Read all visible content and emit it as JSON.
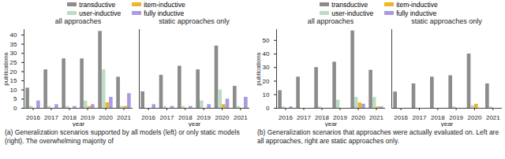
{
  "chart_data": [
    {
      "type": "bar",
      "title": "all approaches",
      "legend": "top",
      "caption": "(a) Generalization scenarios supported by all models (left) or only static models (right). The overwhelming majority of",
      "x_label": "year",
      "y_label": "publications",
      "categories": [
        "2016",
        "2017",
        "2018",
        "2019",
        "2020",
        "2021"
      ],
      "series": [
        {
          "name": "transductive",
          "color": "#8c8c8c",
          "values": [
            11,
            21,
            27,
            27,
            42,
            17
          ]
        },
        {
          "name": "user-inductive",
          "color": "#bcdcc4",
          "values": [
            1,
            1,
            1,
            4,
            21,
            1
          ]
        },
        {
          "name": "item-inductive",
          "color": "#f0b429",
          "values": [
            0,
            0,
            0,
            1,
            3,
            1
          ]
        },
        {
          "name": "fully inductive",
          "color": "#a99be0",
          "values": [
            4,
            2,
            1,
            2,
            6,
            8
          ]
        }
      ],
      "ylim": [
        0,
        43
      ],
      "yticks": [
        0,
        5,
        10,
        15,
        20,
        25,
        30,
        35,
        40
      ]
    },
    {
      "type": "bar",
      "title": "static approaches only",
      "tick_labels": "x",
      "x_label": "year",
      "categories": [
        "2016",
        "2017",
        "2018",
        "2019",
        "2020",
        "2021"
      ],
      "series": [
        {
          "name": "transductive",
          "color": "#8c8c8c",
          "values": [
            9,
            18,
            23,
            21,
            34,
            12
          ]
        },
        {
          "name": "user-inductive",
          "color": "#bcdcc4",
          "values": [
            0,
            1,
            1,
            4,
            10,
            1
          ]
        },
        {
          "name": "item-inductive",
          "color": "#f0b429",
          "values": [
            0,
            0,
            0,
            0,
            2,
            0
          ]
        },
        {
          "name": "fully inductive",
          "color": "#a99be0",
          "values": [
            2,
            1,
            1,
            2,
            5,
            6
          ]
        }
      ],
      "ylim": [
        0,
        43
      ]
    },
    {
      "type": "bar",
      "title": "all approaches",
      "legend": "top",
      "caption": "(b) Generalization scenarios that approaches were actually evaluated on. Left are all approaches, right are static approaches only.",
      "x_label": "year",
      "y_label": "publications",
      "categories": [
        "2016",
        "2017",
        "2018",
        "2019",
        "2020",
        "2021"
      ],
      "series": [
        {
          "name": "transductive",
          "color": "#8c8c8c",
          "values": [
            13,
            23,
            30,
            34,
            57,
            28
          ]
        },
        {
          "name": "user-inductive",
          "color": "#bcdcc4",
          "values": [
            1,
            0,
            1,
            6,
            8,
            8
          ]
        },
        {
          "name": "item-inductive",
          "color": "#f0b429",
          "values": [
            0,
            0,
            0,
            0,
            4,
            1
          ]
        },
        {
          "name": "fully inductive",
          "color": "#a99be0",
          "values": [
            1,
            0,
            0,
            0,
            3,
            1
          ]
        }
      ],
      "ylim": [
        0,
        58
      ],
      "yticks": [
        0,
        10,
        20,
        30,
        40,
        50
      ]
    },
    {
      "type": "bar",
      "title": "static approaches only",
      "tick_labels": "x",
      "x_label": "year",
      "categories": [
        "2016",
        "2017",
        "2018",
        "2019",
        "2020",
        "2021"
      ],
      "series": [
        {
          "name": "transductive",
          "color": "#8c8c8c",
          "values": [
            12,
            18,
            23,
            24,
            40,
            18
          ]
        },
        {
          "name": "user-inductive",
          "color": "#bcdcc4",
          "values": [
            0,
            0,
            0,
            1,
            2,
            1
          ]
        },
        {
          "name": "item-inductive",
          "color": "#f0b429",
          "values": [
            0,
            0,
            0,
            0,
            3,
            0
          ]
        },
        {
          "name": "fully inductive",
          "color": "#a99be0",
          "values": [
            0,
            0,
            0,
            0,
            0,
            0
          ]
        }
      ],
      "ylim": [
        0,
        58
      ]
    }
  ]
}
